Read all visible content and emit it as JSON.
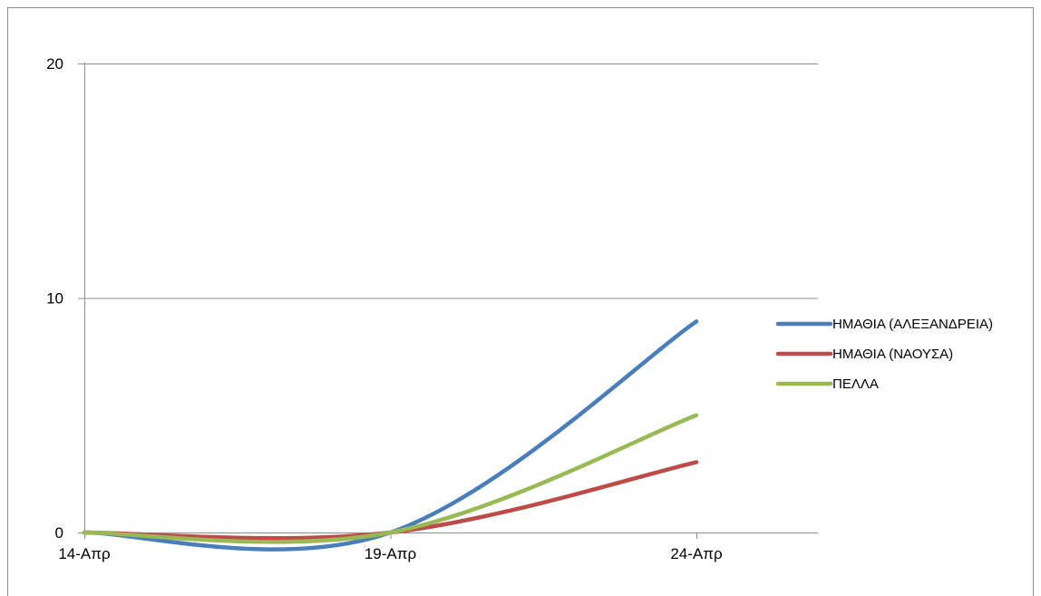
{
  "chart_data": {
    "type": "line",
    "categories": [
      "14-Απρ",
      "19-Απρ",
      "24-Απρ"
    ],
    "series": [
      {
        "name": "ΗΜΑΘΙΑ (ΑΛΕΞΑΝΔΡΕΙΑ)",
        "color": "#4a7ebb",
        "values": [
          0,
          0,
          9
        ]
      },
      {
        "name": "ΗΜΑΘΙΑ (ΝΑΟΥΣΑ)",
        "color": "#be4b48",
        "values": [
          0,
          0,
          3
        ]
      },
      {
        "name": "ΠΕΛΛΑ",
        "color": "#98b954",
        "values": [
          0,
          0,
          5
        ]
      }
    ],
    "yticks": [
      0,
      10,
      20
    ],
    "ylim": [
      0,
      20
    ],
    "grid": true,
    "legend": "right",
    "title": "",
    "xlabel": "",
    "ylabel": ""
  }
}
